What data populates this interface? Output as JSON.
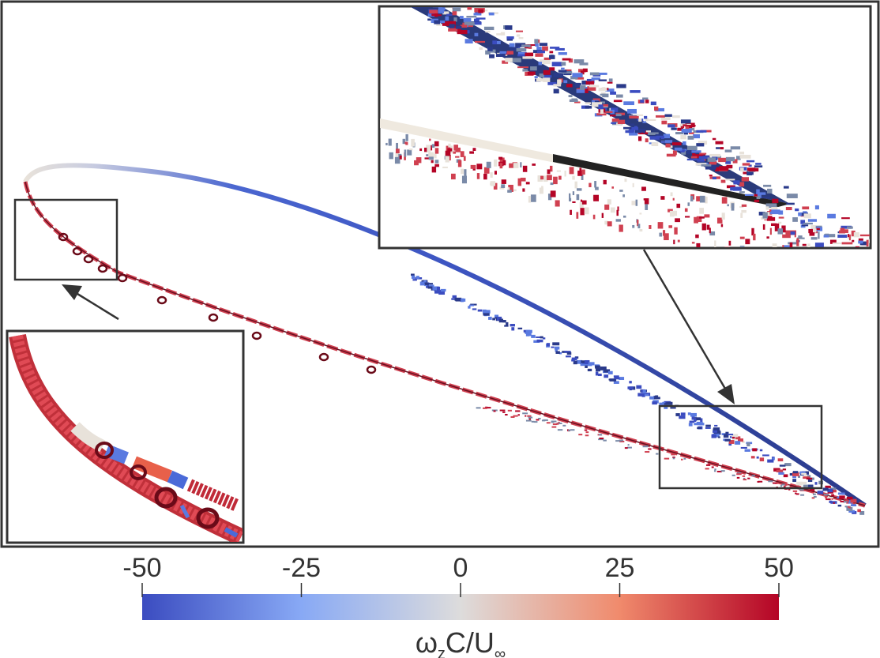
{
  "figure": {
    "description_colors": {
      "negative": "#3b4cc0",
      "neutral": "#e8dcd2",
      "positive": "#b40426",
      "frame": "#333333"
    }
  },
  "colorbar": {
    "ticks": [
      "-50",
      "-25",
      "0",
      "25",
      "50"
    ],
    "tick_values": [
      -50,
      -25,
      0,
      25,
      50
    ],
    "range": [
      -50,
      50
    ],
    "title_main": "ω",
    "title_sub": "z",
    "title_rest": "C/U",
    "title_sub2": "∞",
    "colormap": [
      "#3b4cc0",
      "#88a9f5",
      "#dddcdc",
      "#f08a6c",
      "#b40426"
    ]
  },
  "insets": [
    {
      "name": "leading-edge-zoom",
      "target": "leading edge"
    },
    {
      "name": "trailing-edge-zoom",
      "target": "trailing edge"
    }
  ]
}
